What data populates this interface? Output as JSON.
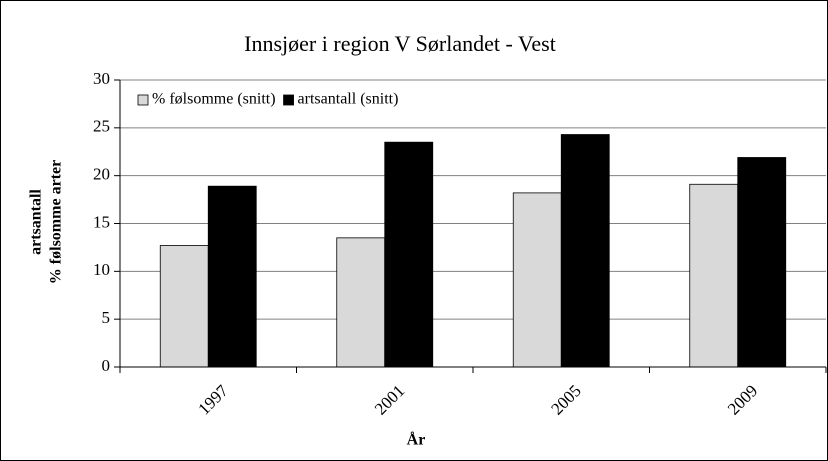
{
  "chart_data": {
    "type": "bar",
    "title": "Innsjøer i region V Sørlandet - Vest",
    "xlabel": "År",
    "ylabel": [
      "artsantall",
      "% følsomme arter"
    ],
    "categories": [
      "1997",
      "2001",
      "2005",
      "2009"
    ],
    "series": [
      {
        "name": "% følsomme (snitt)",
        "color": "#d9d9d9",
        "values": [
          12.7,
          13.5,
          18.2,
          19.1
        ]
      },
      {
        "name": "artsantall (snitt)",
        "color": "#000000",
        "values": [
          18.9,
          23.5,
          24.3,
          21.9
        ]
      }
    ],
    "ylim": [
      0,
      30
    ],
    "yticks": [
      0,
      5,
      10,
      15,
      20,
      25,
      30
    ],
    "grid": true,
    "legend": "top-left"
  }
}
